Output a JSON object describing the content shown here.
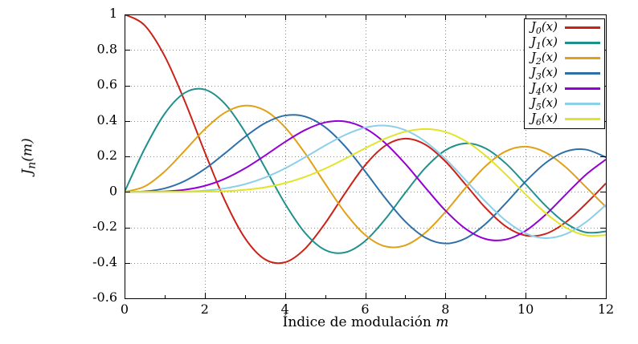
{
  "chart_data": {
    "type": "line",
    "title": "",
    "xlabel": "Índice de modulación",
    "xlabel_var": "m",
    "ylabel_pre": "J",
    "ylabel_sub": "n",
    "ylabel_post": "(m)",
    "xlim": [
      0,
      12
    ],
    "ylim": [
      -0.6,
      1
    ],
    "grid": "dotted",
    "legend_position": "top-right-inside",
    "xticks": {
      "values": [
        0,
        2,
        4,
        6,
        8,
        10,
        12
      ],
      "labels": [
        "0",
        "2",
        "4",
        "6",
        "8",
        "10",
        "12"
      ],
      "minor_step": 1
    },
    "yticks": {
      "values": [
        -0.6,
        -0.4,
        -0.2,
        0,
        0.2,
        0.4,
        0.6,
        0.8,
        1
      ],
      "labels": [
        "-0.6",
        "-0.4",
        "-0.2",
        "0",
        "0.2",
        "0.4",
        "0.6",
        "0.8",
        "1"
      ]
    },
    "x": [
      0,
      0.5,
      1,
      1.5,
      2,
      2.5,
      3,
      3.5,
      4,
      4.5,
      5,
      5.5,
      6,
      6.5,
      7,
      7.5,
      8,
      8.5,
      9,
      9.5,
      10,
      10.5,
      11,
      11.5,
      12
    ],
    "series": [
      {
        "name": "J0(x)",
        "label_pre": "J",
        "label_sub": "0",
        "label_post": "(x)",
        "color": "#cb2218",
        "values": [
          1,
          0.9385,
          0.7652,
          0.5118,
          0.2239,
          -0.0484,
          -0.2601,
          -0.3801,
          -0.3971,
          -0.3205,
          -0.1776,
          -0.0068,
          0.1506,
          0.2601,
          0.3001,
          0.2663,
          0.1717,
          0.0419,
          -0.0903,
          -0.1939,
          -0.2459,
          -0.2366,
          -0.1712,
          -0.0677,
          0.0477
        ]
      },
      {
        "name": "J1(x)",
        "label_pre": "J",
        "label_sub": "1",
        "label_post": "(x)",
        "color": "#20908c",
        "values": [
          0,
          0.2423,
          0.4401,
          0.5579,
          0.5767,
          0.4971,
          0.3391,
          0.1374,
          -0.066,
          -0.2311,
          -0.3276,
          -0.3414,
          -0.2767,
          -0.1538,
          -0.0047,
          0.1352,
          0.2346,
          0.2731,
          0.2453,
          0.1613,
          0.0435,
          -0.0789,
          -0.1768,
          -0.2284,
          -0.2234
        ]
      },
      {
        "name": "J2(x)",
        "label_pre": "J",
        "label_sub": "2",
        "label_post": "(x)",
        "color": "#e0a117",
        "values": [
          0,
          0.0306,
          0.1149,
          0.2321,
          0.3528,
          0.4461,
          0.4861,
          0.4586,
          0.3641,
          0.2178,
          0.0466,
          -0.1173,
          -0.2429,
          -0.3074,
          -0.3014,
          -0.2303,
          -0.113,
          0.0222,
          0.1448,
          0.2279,
          0.2546,
          0.2216,
          0.139,
          0.0279,
          -0.0849
        ]
      },
      {
        "name": "J3(x)",
        "label_pre": "J",
        "label_sub": "3",
        "label_post": "(x)",
        "color": "#2e6fa8",
        "values": [
          0,
          0.0026,
          0.0196,
          0.061,
          0.1289,
          0.2166,
          0.3091,
          0.3868,
          0.4302,
          0.4247,
          0.3648,
          0.2561,
          0.1148,
          -0.0353,
          -0.1676,
          -0.2581,
          -0.2911,
          -0.2626,
          -0.1809,
          -0.0653,
          0.0584,
          0.1633,
          0.2273,
          0.2381,
          0.1951
        ]
      },
      {
        "name": "J4(x)",
        "label_pre": "J",
        "label_sub": "4",
        "label_post": "(x)",
        "color": "#9400d3",
        "values": [
          0,
          0.0002,
          0.0025,
          0.0118,
          0.034,
          0.0738,
          0.132,
          0.2044,
          0.2811,
          0.3484,
          0.3912,
          0.3967,
          0.3576,
          0.2748,
          0.1578,
          0.0238,
          -0.1054,
          -0.2076,
          -0.2655,
          -0.2691,
          -0.2196,
          -0.1283,
          -0.015,
          0.0963,
          0.1825
        ]
      },
      {
        "name": "J5(x)",
        "label_pre": "J",
        "label_sub": "5",
        "label_post": "(x)",
        "color": "#8ccfe8",
        "values": [
          0,
          0,
          0.0002,
          0.0018,
          0.007,
          0.0195,
          0.043,
          0.0804,
          0.1321,
          0.1947,
          0.2611,
          0.3209,
          0.3621,
          0.3736,
          0.3479,
          0.2835,
          0.1858,
          0.0672,
          -0.055,
          -0.1613,
          -0.2341,
          -0.2611,
          -0.2383,
          -0.1711,
          -0.0735
        ]
      },
      {
        "name": "J6(x)",
        "label_pre": "J",
        "label_sub": "6",
        "label_post": "(x)",
        "color": "#e3e32a",
        "values": [
          0,
          0,
          0,
          0.0002,
          0.0012,
          0.0042,
          0.0114,
          0.0254,
          0.0491,
          0.0843,
          0.131,
          0.1868,
          0.2458,
          0.2999,
          0.3392,
          0.3541,
          0.3376,
          0.2867,
          0.2043,
          0.0993,
          -0.0145,
          -0.1203,
          -0.2016,
          -0.2451,
          -0.2437
        ]
      }
    ]
  }
}
